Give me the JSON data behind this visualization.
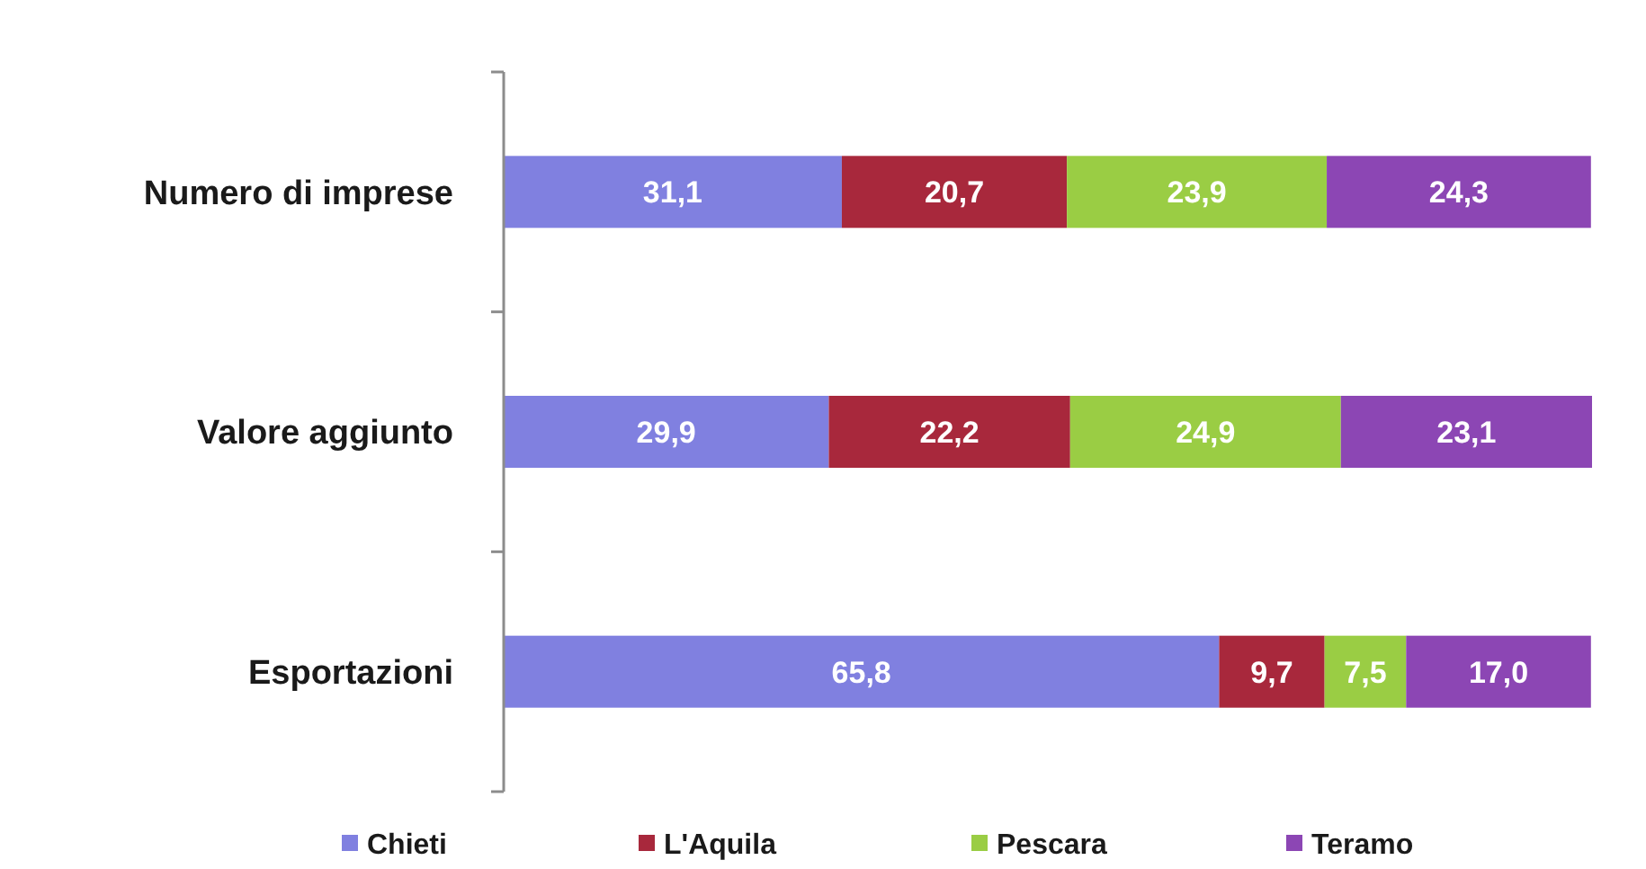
{
  "chart_data": {
    "type": "bar",
    "orientation": "horizontal",
    "stacked": true,
    "legend": "bottom",
    "categories": [
      "Numero di imprese",
      "Valore aggiunto",
      "Esportazioni"
    ],
    "series": [
      {
        "name": "Chieti",
        "color": "#8080e0",
        "values": [
          31.1,
          29.9,
          65.8
        ],
        "value_labels": [
          "31,1",
          "29,9",
          "65,8"
        ]
      },
      {
        "name": "L'Aquila",
        "color": "#a8283c",
        "values": [
          20.7,
          22.2,
          9.7
        ],
        "value_labels": [
          "20,7",
          "22,2",
          "9,7"
        ]
      },
      {
        "name": "Pescara",
        "color": "#9acd44",
        "values": [
          23.9,
          24.9,
          7.5
        ],
        "value_labels": [
          "23,9",
          "24,9",
          "7,5"
        ]
      },
      {
        "name": "Teramo",
        "color": "#8c46b4",
        "values": [
          24.3,
          23.1,
          17.0
        ],
        "value_labels": [
          "24,3",
          "23,1",
          "17,0"
        ]
      }
    ]
  }
}
